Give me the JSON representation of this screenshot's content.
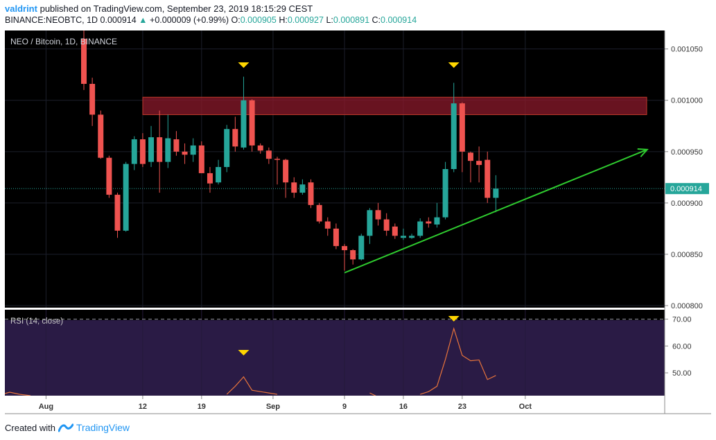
{
  "header": {
    "user": "valdrint",
    "published_text": "published on TradingView.com, September 23, 2019 18:15:29 CEST",
    "symbol": "BINANCE:NEOBTC, 1D",
    "last": "0.000914",
    "change": "+0.000009 (+0.99%)",
    "o_label": "O:",
    "o_value": "0.000905",
    "h_label": "H:",
    "h_value": "0.000927",
    "l_label": "L:",
    "l_value": "0.000891",
    "c_label": "C:",
    "c_value": "0.000914"
  },
  "footer": {
    "created_with": "Created with",
    "brand": "TradingView"
  },
  "colors": {
    "up": "#26a69a",
    "down": "#ef5350",
    "trendline": "#2fcc2f",
    "resistance": "#8b1a2b",
    "marker": "#ffd600",
    "rsi": "#e8743b",
    "background": "#000000"
  },
  "chart_data": {
    "type": "candlestick",
    "title": "NEO / Bitcoin, 1D, BINANCE",
    "price_axis": {
      "ticks": [
        "0.001050",
        "0.001000",
        "0.000950",
        "0.000900",
        "0.000850",
        "0.000800"
      ],
      "range": [
        0.000798,
        0.001068
      ],
      "current_price_label": "0.000914",
      "current_price": 0.000914
    },
    "time_axis": {
      "ticks": [
        "Aug",
        "12",
        "19",
        "Sep",
        "9",
        "16",
        "23",
        "Oct"
      ]
    },
    "candles": [
      {
        "o": 0.00106,
        "h": 0.00108,
        "l": 0.00101,
        "c": 0.001016
      },
      {
        "o": 0.001016,
        "h": 0.001022,
        "l": 0.000975,
        "c": 0.000986
      },
      {
        "o": 0.000986,
        "h": 0.00099,
        "l": 0.000943,
        "c": 0.000944
      },
      {
        "o": 0.000944,
        "h": 0.000946,
        "l": 0.000905,
        "c": 0.000908
      },
      {
        "o": 0.000908,
        "h": 0.00091,
        "l": 0.000866,
        "c": 0.000873
      },
      {
        "o": 0.000873,
        "h": 0.00094,
        "l": 0.000872,
        "c": 0.000938
      },
      {
        "o": 0.000938,
        "h": 0.000965,
        "l": 0.000932,
        "c": 0.000962
      },
      {
        "o": 0.000962,
        "h": 0.000968,
        "l": 0.000935,
        "c": 0.000938
      },
      {
        "o": 0.00094,
        "h": 0.000975,
        "l": 0.000935,
        "c": 0.000964
      },
      {
        "o": 0.000964,
        "h": 0.00099,
        "l": 0.00091,
        "c": 0.00094
      },
      {
        "o": 0.00094,
        "h": 0.000986,
        "l": 0.000934,
        "c": 0.000963
      },
      {
        "o": 0.000962,
        "h": 0.00097,
        "l": 0.000946,
        "c": 0.00095
      },
      {
        "o": 0.00095,
        "h": 0.000958,
        "l": 0.000938,
        "c": 0.000947
      },
      {
        "o": 0.000947,
        "h": 0.000963,
        "l": 0.00094,
        "c": 0.000956
      },
      {
        "o": 0.000956,
        "h": 0.00096,
        "l": 0.00093,
        "c": 0.000929
      },
      {
        "o": 0.000929,
        "h": 0.000935,
        "l": 0.00091,
        "c": 0.000919
      },
      {
        "o": 0.00092,
        "h": 0.000942,
        "l": 0.000918,
        "c": 0.000935
      },
      {
        "o": 0.000935,
        "h": 0.000976,
        "l": 0.00093,
        "c": 0.000972
      },
      {
        "o": 0.000972,
        "h": 0.000984,
        "l": 0.00095,
        "c": 0.000955
      },
      {
        "o": 0.000954,
        "h": 0.001023,
        "l": 0.000952,
        "c": 0.001
      },
      {
        "o": 0.001,
        "h": 0.001001,
        "l": 0.00095,
        "c": 0.000956
      },
      {
        "o": 0.000956,
        "h": 0.000958,
        "l": 0.000948,
        "c": 0.000951
      },
      {
        "o": 0.000951,
        "h": 0.000954,
        "l": 0.000938,
        "c": 0.000943
      },
      {
        "o": 0.000943,
        "h": 0.000945,
        "l": 0.000918,
        "c": 0.000942
      },
      {
        "o": 0.000942,
        "h": 0.000943,
        "l": 0.000905,
        "c": 0.00092
      },
      {
        "o": 0.00092,
        "h": 0.000925,
        "l": 0.000905,
        "c": 0.00091
      },
      {
        "o": 0.00091,
        "h": 0.000923,
        "l": 0.000908,
        "c": 0.000918
      },
      {
        "o": 0.00092,
        "h": 0.000923,
        "l": 0.000895,
        "c": 0.000898
      },
      {
        "o": 0.000898,
        "h": 0.0009,
        "l": 0.00088,
        "c": 0.000882
      },
      {
        "o": 0.000882,
        "h": 0.000886,
        "l": 0.000868,
        "c": 0.000875
      },
      {
        "o": 0.000875,
        "h": 0.00088,
        "l": 0.000855,
        "c": 0.000858
      },
      {
        "o": 0.000858,
        "h": 0.00086,
        "l": 0.000834,
        "c": 0.000854
      },
      {
        "o": 0.000854,
        "h": 0.000855,
        "l": 0.00084,
        "c": 0.000845
      },
      {
        "o": 0.000845,
        "h": 0.00087,
        "l": 0.000844,
        "c": 0.000868
      },
      {
        "o": 0.000868,
        "h": 0.000895,
        "l": 0.00086,
        "c": 0.000893
      },
      {
        "o": 0.000893,
        "h": 0.0009,
        "l": 0.000878,
        "c": 0.000884
      },
      {
        "o": 0.000884,
        "h": 0.00089,
        "l": 0.000868,
        "c": 0.000873
      },
      {
        "o": 0.000877,
        "h": 0.00088,
        "l": 0.000865,
        "c": 0.000868
      },
      {
        "o": 0.000866,
        "h": 0.000875,
        "l": 0.000864,
        "c": 0.000868
      },
      {
        "o": 0.000866,
        "h": 0.00087,
        "l": 0.000865,
        "c": 0.000868
      },
      {
        "o": 0.000868,
        "h": 0.000885,
        "l": 0.000866,
        "c": 0.000882
      },
      {
        "o": 0.000882,
        "h": 0.000886,
        "l": 0.000876,
        "c": 0.00088
      },
      {
        "o": 0.000879,
        "h": 0.0009,
        "l": 0.000876,
        "c": 0.000886
      },
      {
        "o": 0.000886,
        "h": 0.00094,
        "l": 0.000884,
        "c": 0.000933
      },
      {
        "o": 0.000933,
        "h": 0.001017,
        "l": 0.00093,
        "c": 0.000997
      },
      {
        "o": 0.000997,
        "h": 0.000998,
        "l": 0.00093,
        "c": 0.00095
      },
      {
        "o": 0.000949,
        "h": 0.00095,
        "l": 0.00092,
        "c": 0.000941
      },
      {
        "o": 0.000941,
        "h": 0.000955,
        "l": 0.00092,
        "c": 0.000937
      },
      {
        "o": 0.000942,
        "h": 0.00095,
        "l": 0.0009,
        "c": 0.000905
      },
      {
        "o": 0.000905,
        "h": 0.000927,
        "l": 0.000891,
        "c": 0.000914
      }
    ],
    "resistance_zone": [
      0.000986,
      0.001003
    ],
    "trendline": {
      "from": {
        "candle": 31,
        "price": 0.000832
      },
      "to": {
        "candle": 67,
        "price": 0.000952
      }
    },
    "peak_markers": [
      {
        "candle": 19
      },
      {
        "candle": 44
      }
    ],
    "rsi": {
      "label": "RSI (14, close)",
      "ticks": [
        "70.00",
        "60.00",
        "50.00"
      ],
      "range": [
        41.5,
        73.5
      ],
      "overbought": 70,
      "values": [
        null,
        null,
        null,
        null,
        null,
        null,
        null,
        null,
        null,
        null,
        null,
        null,
        null,
        null,
        null,
        null,
        null,
        42.0,
        45.0,
        48.5,
        43.5,
        43.0,
        42.5,
        42.0,
        null,
        null,
        null,
        null,
        null,
        null,
        null,
        null,
        null,
        null,
        42.5,
        41.0,
        null,
        null,
        null,
        null,
        42.0,
        43.0,
        45.0,
        55.0,
        66.5,
        56.5,
        54.5,
        54.8,
        47.5,
        49.0
      ],
      "peak_markers": [
        {
          "candle": 19
        },
        {
          "candle": 44
        }
      ]
    }
  }
}
